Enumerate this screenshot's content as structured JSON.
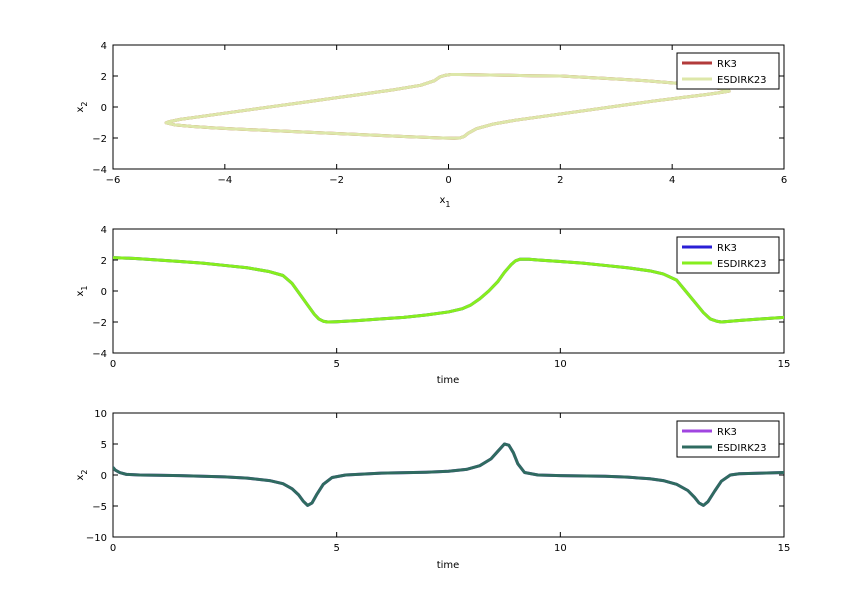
{
  "chart_data": [
    {
      "type": "line",
      "xlabel_main": "x",
      "xlabel_sub": "1",
      "ylabel_main": "x",
      "ylabel_sub": "2",
      "xlim": [
        -6,
        6
      ],
      "ylim": [
        -4,
        4
      ],
      "xticks": [
        -6,
        -4,
        -2,
        0,
        2,
        4,
        6
      ],
      "yticks": [
        -4,
        -2,
        0,
        2,
        4
      ],
      "legend_position": "top-right",
      "grid": false,
      "series": [
        {
          "name": "RK3",
          "color": "#b23a3a",
          "x": [
            2.0,
            1.5,
            1.0,
            0.5,
            0.2,
            0.05,
            -0.05,
            -0.15,
            -0.25,
            -0.5,
            -1.0,
            -1.5,
            -2.0,
            -2.5,
            -3.0,
            -3.5,
            -4.0,
            -4.5,
            -4.8,
            -5.0,
            -5.05,
            -4.9,
            -4.6,
            -4.2,
            -3.8,
            -3.3,
            -2.8,
            -2.3,
            -1.8,
            -1.3,
            -0.8,
            -0.4,
            -0.1,
            0.1,
            0.2,
            0.28,
            0.35,
            0.5,
            0.8,
            1.2,
            1.7,
            2.2,
            2.7,
            3.2,
            3.7,
            4.2,
            4.6,
            4.9,
            5.02,
            4.95,
            4.7,
            4.2,
            3.5,
            2.8,
            2.0
          ],
          "y": [
            2.0,
            2.02,
            2.05,
            2.08,
            2.1,
            2.1,
            2.05,
            1.95,
            1.7,
            1.4,
            1.1,
            0.85,
            0.6,
            0.35,
            0.1,
            -0.15,
            -0.4,
            -0.65,
            -0.8,
            -0.95,
            -1.02,
            -1.15,
            -1.25,
            -1.35,
            -1.42,
            -1.5,
            -1.58,
            -1.66,
            -1.74,
            -1.82,
            -1.9,
            -1.96,
            -2.0,
            -2.02,
            -2.0,
            -1.9,
            -1.7,
            -1.4,
            -1.1,
            -0.85,
            -0.6,
            -0.35,
            -0.1,
            0.15,
            0.4,
            0.62,
            0.8,
            0.95,
            1.02,
            1.12,
            1.3,
            1.5,
            1.7,
            1.85,
            2.0
          ]
        },
        {
          "name": "ESDIRK23",
          "color": "#dde7a9",
          "x": [
            2.0,
            1.5,
            1.0,
            0.5,
            0.2,
            0.05,
            -0.05,
            -0.15,
            -0.25,
            -0.5,
            -1.0,
            -1.5,
            -2.0,
            -2.5,
            -3.0,
            -3.5,
            -4.0,
            -4.5,
            -4.8,
            -5.0,
            -5.05,
            -4.9,
            -4.6,
            -4.2,
            -3.8,
            -3.3,
            -2.8,
            -2.3,
            -1.8,
            -1.3,
            -0.8,
            -0.4,
            -0.1,
            0.1,
            0.2,
            0.28,
            0.35,
            0.5,
            0.8,
            1.2,
            1.7,
            2.2,
            2.7,
            3.2,
            3.7,
            4.2,
            4.6,
            4.9,
            5.02,
            4.95,
            4.7,
            4.2,
            3.5,
            2.8,
            2.0
          ],
          "y": [
            2.0,
            2.02,
            2.05,
            2.08,
            2.1,
            2.1,
            2.05,
            1.95,
            1.7,
            1.4,
            1.1,
            0.85,
            0.6,
            0.35,
            0.1,
            -0.15,
            -0.4,
            -0.65,
            -0.8,
            -0.95,
            -1.02,
            -1.15,
            -1.25,
            -1.35,
            -1.42,
            -1.5,
            -1.58,
            -1.66,
            -1.74,
            -1.82,
            -1.9,
            -1.96,
            -2.0,
            -2.02,
            -2.0,
            -1.9,
            -1.7,
            -1.4,
            -1.1,
            -0.85,
            -0.6,
            -0.35,
            -0.1,
            0.15,
            0.4,
            0.62,
            0.8,
            0.95,
            1.02,
            1.12,
            1.3,
            1.5,
            1.7,
            1.85,
            2.0
          ]
        }
      ]
    },
    {
      "type": "line",
      "xlabel_main": "time",
      "ylabel_main": "x",
      "ylabel_sub": "1",
      "xlim": [
        0,
        15
      ],
      "ylim": [
        -4,
        4
      ],
      "xticks": [
        0,
        5,
        10,
        15
      ],
      "yticks": [
        -4,
        -2,
        0,
        2,
        4
      ],
      "legend_position": "top-right",
      "grid": false,
      "series": [
        {
          "name": "RK3",
          "color": "#2a1fd6",
          "x": [
            0,
            0.5,
            1,
            1.5,
            2,
            2.5,
            3,
            3.5,
            3.8,
            4.0,
            4.2,
            4.35,
            4.5,
            4.6,
            4.7,
            4.8,
            5.0,
            5.5,
            6,
            6.5,
            7,
            7.5,
            7.8,
            8.0,
            8.2,
            8.4,
            8.6,
            8.75,
            8.9,
            9.0,
            9.1,
            9.3,
            9.5,
            10,
            10.5,
            11,
            11.5,
            12,
            12.3,
            12.6,
            12.8,
            13.0,
            13.2,
            13.35,
            13.5,
            13.6,
            13.8,
            14,
            14.5,
            15
          ],
          "y": [
            2.15,
            2.1,
            2.0,
            1.9,
            1.8,
            1.65,
            1.5,
            1.25,
            1.0,
            0.5,
            -0.3,
            -0.9,
            -1.5,
            -1.8,
            -1.95,
            -2.0,
            -1.98,
            -1.9,
            -1.8,
            -1.7,
            -1.55,
            -1.35,
            -1.15,
            -0.9,
            -0.5,
            0.0,
            0.6,
            1.2,
            1.7,
            1.95,
            2.05,
            2.05,
            2.0,
            1.9,
            1.8,
            1.65,
            1.5,
            1.3,
            1.1,
            0.7,
            0.0,
            -0.7,
            -1.4,
            -1.8,
            -1.95,
            -2.0,
            -1.95,
            -1.9,
            -1.8,
            -1.7
          ]
        },
        {
          "name": "ESDIRK23",
          "color": "#86ee1e",
          "x": [
            0,
            0.5,
            1,
            1.5,
            2,
            2.5,
            3,
            3.5,
            3.8,
            4.0,
            4.2,
            4.35,
            4.5,
            4.6,
            4.7,
            4.8,
            5.0,
            5.5,
            6,
            6.5,
            7,
            7.5,
            7.8,
            8.0,
            8.2,
            8.4,
            8.6,
            8.75,
            8.9,
            9.0,
            9.1,
            9.3,
            9.5,
            10,
            10.5,
            11,
            11.5,
            12,
            12.3,
            12.6,
            12.8,
            13.0,
            13.2,
            13.35,
            13.5,
            13.6,
            13.8,
            14,
            14.5,
            15
          ],
          "y": [
            2.15,
            2.1,
            2.0,
            1.9,
            1.8,
            1.65,
            1.5,
            1.25,
            1.0,
            0.5,
            -0.3,
            -0.9,
            -1.5,
            -1.8,
            -1.95,
            -2.0,
            -1.98,
            -1.9,
            -1.8,
            -1.7,
            -1.55,
            -1.35,
            -1.15,
            -0.9,
            -0.5,
            0.0,
            0.6,
            1.2,
            1.7,
            1.95,
            2.05,
            2.05,
            2.0,
            1.9,
            1.8,
            1.65,
            1.5,
            1.3,
            1.1,
            0.7,
            0.0,
            -0.7,
            -1.4,
            -1.8,
            -1.95,
            -2.0,
            -1.95,
            -1.9,
            -1.8,
            -1.7
          ]
        }
      ]
    },
    {
      "type": "line",
      "xlabel_main": "time",
      "ylabel_main": "x",
      "ylabel_sub": "2",
      "xlim": [
        0,
        15
      ],
      "ylim": [
        -10,
        10
      ],
      "xticks": [
        0,
        5,
        10,
        15
      ],
      "yticks": [
        -10,
        -5,
        0,
        5,
        10
      ],
      "legend_position": "top-right",
      "grid": false,
      "series": [
        {
          "name": "RK3",
          "color": "#a045e0",
          "x": [
            0,
            0.05,
            0.15,
            0.3,
            0.6,
            1,
            1.5,
            2,
            2.5,
            3,
            3.5,
            3.8,
            4.0,
            4.15,
            4.25,
            4.35,
            4.45,
            4.55,
            4.7,
            4.9,
            5.2,
            6,
            7,
            7.5,
            7.9,
            8.2,
            8.45,
            8.6,
            8.75,
            8.85,
            8.95,
            9.05,
            9.2,
            9.5,
            10,
            11,
            11.5,
            12,
            12.3,
            12.6,
            12.85,
            13.0,
            13.1,
            13.2,
            13.3,
            13.45,
            13.6,
            13.8,
            14,
            14.5,
            15
          ],
          "y": [
            1.2,
            0.8,
            0.4,
            0.1,
            0.0,
            -0.05,
            -0.1,
            -0.2,
            -0.3,
            -0.5,
            -0.9,
            -1.4,
            -2.2,
            -3.2,
            -4.2,
            -4.9,
            -4.5,
            -3.2,
            -1.5,
            -0.4,
            0.0,
            0.3,
            0.45,
            0.6,
            0.9,
            1.5,
            2.6,
            3.8,
            5.0,
            4.8,
            3.6,
            1.8,
            0.4,
            0.0,
            -0.1,
            -0.2,
            -0.35,
            -0.6,
            -0.9,
            -1.5,
            -2.5,
            -3.6,
            -4.5,
            -4.9,
            -4.3,
            -2.6,
            -1.0,
            0.0,
            0.2,
            0.3,
            0.4
          ]
        },
        {
          "name": "ESDIRK23",
          "color": "#2f6b60",
          "x": [
            0,
            0.05,
            0.15,
            0.3,
            0.6,
            1,
            1.5,
            2,
            2.5,
            3,
            3.5,
            3.8,
            4.0,
            4.15,
            4.25,
            4.35,
            4.45,
            4.55,
            4.7,
            4.9,
            5.2,
            6,
            7,
            7.5,
            7.9,
            8.2,
            8.45,
            8.6,
            8.75,
            8.85,
            8.95,
            9.05,
            9.2,
            9.5,
            10,
            11,
            11.5,
            12,
            12.3,
            12.6,
            12.85,
            13.0,
            13.1,
            13.2,
            13.3,
            13.45,
            13.6,
            13.8,
            14,
            14.5,
            15
          ],
          "y": [
            1.2,
            0.8,
            0.4,
            0.1,
            0.0,
            -0.05,
            -0.1,
            -0.2,
            -0.3,
            -0.5,
            -0.9,
            -1.4,
            -2.2,
            -3.2,
            -4.2,
            -4.9,
            -4.5,
            -3.2,
            -1.5,
            -0.4,
            0.0,
            0.3,
            0.45,
            0.6,
            0.9,
            1.5,
            2.6,
            3.8,
            5.0,
            4.8,
            3.6,
            1.8,
            0.4,
            0.0,
            -0.1,
            -0.2,
            -0.35,
            -0.6,
            -0.9,
            -1.5,
            -2.5,
            -3.6,
            -4.5,
            -4.9,
            -4.3,
            -2.6,
            -1.0,
            0.0,
            0.2,
            0.3,
            0.4
          ]
        }
      ]
    }
  ]
}
